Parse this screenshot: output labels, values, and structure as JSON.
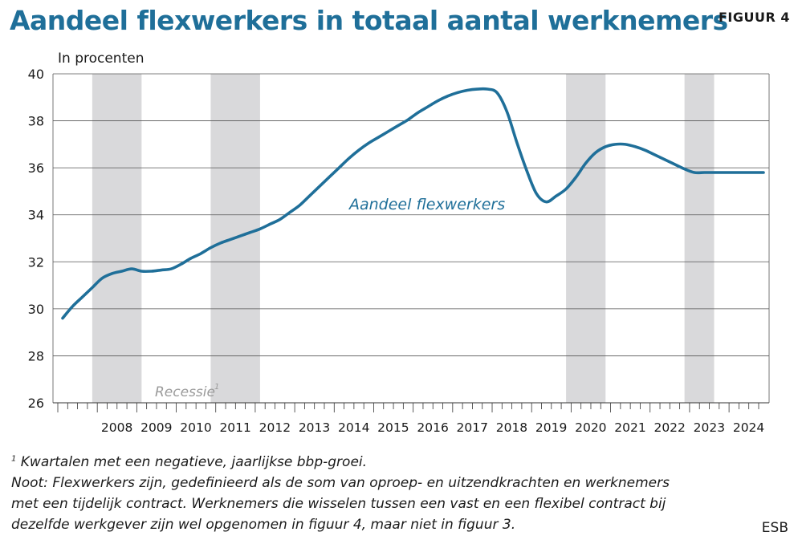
{
  "header": {
    "title": "Aandeel flexwerkers in totaal aantal werknemers",
    "figure_label": "FIGUUR 4"
  },
  "chart_data": {
    "type": "line",
    "title": "Aandeel flexwerkers in totaal aantal werknemers",
    "ylabel": "In procenten",
    "xlabel": "",
    "ylim": [
      26,
      40
    ],
    "yticks": [
      26,
      28,
      30,
      32,
      34,
      36,
      38,
      40
    ],
    "xlim": [
      2007.0,
      2024.75
    ],
    "year_labels": [
      "2008",
      "2009",
      "2010",
      "2011",
      "2012",
      "2013",
      "2014",
      "2015",
      "2016",
      "2017",
      "2018",
      "2019",
      "2020",
      "2021",
      "2022",
      "2023",
      "2024"
    ],
    "grid": "horizontal",
    "series": [
      {
        "name": "Aandeel flexwerkers",
        "color": "#1f6f99",
        "x": [
          2007.0,
          2007.25,
          2007.5,
          2007.75,
          2008.0,
          2008.25,
          2008.5,
          2008.75,
          2009.0,
          2009.25,
          2009.5,
          2009.75,
          2010.0,
          2010.25,
          2010.5,
          2010.75,
          2011.0,
          2011.25,
          2011.5,
          2011.75,
          2012.0,
          2012.25,
          2012.5,
          2012.75,
          2013.0,
          2013.25,
          2013.5,
          2013.75,
          2014.0,
          2014.25,
          2014.5,
          2014.75,
          2015.0,
          2015.25,
          2015.5,
          2015.75,
          2016.0,
          2016.25,
          2016.5,
          2016.75,
          2017.0,
          2017.25,
          2017.5,
          2017.75,
          2018.0,
          2018.25,
          2018.5,
          2018.75,
          2019.0,
          2019.25,
          2019.5,
          2019.75,
          2020.0,
          2020.25,
          2020.5,
          2020.75,
          2021.0,
          2021.25,
          2021.5,
          2021.75,
          2022.0,
          2022.25,
          2022.5,
          2022.75,
          2023.0,
          2023.25,
          2023.5,
          2023.75,
          2024.0,
          2024.25,
          2024.5,
          2024.75
        ],
        "values": [
          29.6,
          30.1,
          30.5,
          30.9,
          31.3,
          31.5,
          31.6,
          31.7,
          31.6,
          31.6,
          31.65,
          31.7,
          31.9,
          32.15,
          32.35,
          32.6,
          32.8,
          32.95,
          33.1,
          33.25,
          33.4,
          33.6,
          33.8,
          34.1,
          34.4,
          34.8,
          35.2,
          35.6,
          36.0,
          36.4,
          36.75,
          37.05,
          37.3,
          37.55,
          37.8,
          38.05,
          38.35,
          38.6,
          38.85,
          39.05,
          39.2,
          39.3,
          39.35,
          39.35,
          39.2,
          38.4,
          37.1,
          35.9,
          34.9,
          34.55,
          34.8,
          35.1,
          35.6,
          36.2,
          36.65,
          36.9,
          37.0,
          37.0,
          36.9,
          36.75,
          36.55,
          36.35,
          36.15,
          35.95,
          35.8,
          35.8,
          35.8,
          35.8,
          35.8,
          35.8,
          35.8,
          35.8
        ]
      }
    ],
    "series_label": "Aandeel flexwerkers",
    "recessions": [
      [
        2007.75,
        2009.0
      ],
      [
        2010.75,
        2012.0
      ],
      [
        2019.75,
        2020.75
      ],
      [
        2022.75,
        2023.5
      ]
    ],
    "recession_label": "Recessie",
    "recession_label_sup": "1",
    "recession_color": "#d9d9db"
  },
  "footnotes": {
    "note1_sup": "1",
    "note1": " Kwartalen met een negatieve, jaarlijkse bbp-groei.",
    "note2_line1": "Noot: Flexwerkers zijn, gedefinieerd als de som van oproep- en uitzendkrachten en werknemers",
    "note2_line2": "met een tijdelijk contract. Werknemers die wisselen tussen een vast en een flexibel contract bij",
    "note2_line3": "dezelfde werkgever zijn wel opgenomen in figuur 4, maar niet in figuur 3.",
    "source": "ESB"
  }
}
